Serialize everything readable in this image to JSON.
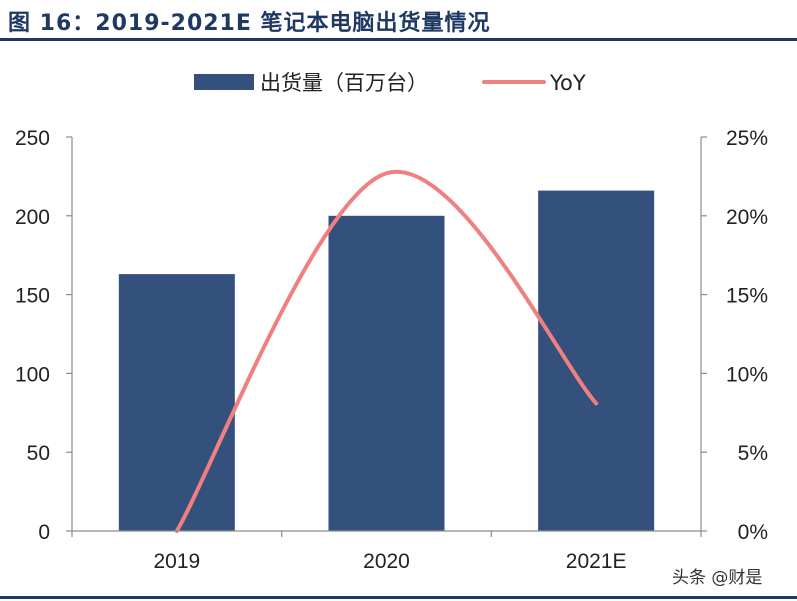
{
  "figure_title": "图 16：2019-2021E 笔记本电脑出货量情况",
  "watermark": "头条 @财是",
  "colors": {
    "bar": "#34507c",
    "line": "#f08080",
    "title": "#1f3864",
    "axis": "#222222"
  },
  "chart_data": {
    "type": "bar",
    "categories": [
      "2019",
      "2020",
      "2021E"
    ],
    "series": [
      {
        "name": "出货量（百万台）",
        "type": "bar",
        "axis": "left",
        "values": [
          163,
          200,
          216
        ]
      },
      {
        "name": "YoY",
        "type": "line",
        "axis": "right",
        "values": [
          0.0,
          22.7,
          8.1
        ]
      }
    ],
    "y_left": {
      "range": [
        0,
        250
      ],
      "ticks": [
        "0",
        "50",
        "100",
        "150",
        "200",
        "250"
      ]
    },
    "y_right": {
      "range": [
        0,
        25
      ],
      "ticks": [
        "0%",
        "5%",
        "10%",
        "15%",
        "20%",
        "25%"
      ]
    },
    "legend": {
      "position": "top-center",
      "entries": [
        "出货量（百万台）",
        "YoY"
      ]
    },
    "grid": false
  }
}
